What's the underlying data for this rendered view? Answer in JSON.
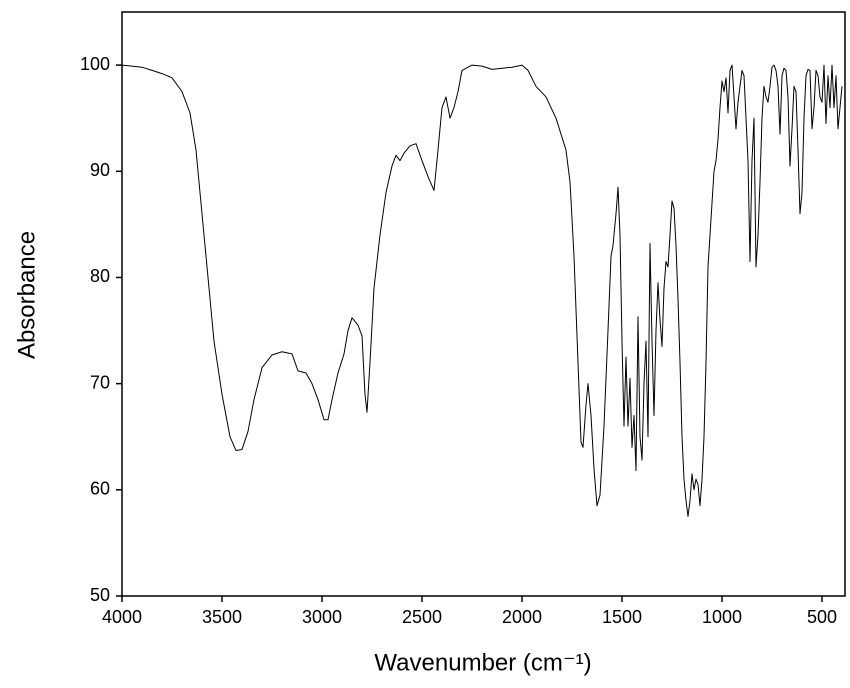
{
  "chart_data": {
    "type": "line",
    "xlabel": "Wavenumber (cm⁻¹)",
    "ylabel": "Absorbance",
    "xlim": [
      4000,
      385
    ],
    "ylim": [
      50,
      105
    ],
    "xticks": [
      4000,
      3500,
      3000,
      2500,
      2000,
      1500,
      1000,
      500
    ],
    "yticks": [
      50,
      60,
      70,
      80,
      90,
      100
    ],
    "color": "#000000",
    "x": [
      4000,
      3950,
      3900,
      3850,
      3800,
      3750,
      3700,
      3660,
      3630,
      3600,
      3570,
      3540,
      3500,
      3460,
      3430,
      3400,
      3370,
      3340,
      3300,
      3250,
      3200,
      3150,
      3120,
      3080,
      3050,
      3020,
      2990,
      2970,
      2950,
      2920,
      2890,
      2870,
      2850,
      2820,
      2800,
      2785,
      2775,
      2760,
      2740,
      2710,
      2680,
      2650,
      2630,
      2610,
      2590,
      2560,
      2530,
      2500,
      2470,
      2440,
      2420,
      2400,
      2380,
      2360,
      2340,
      2320,
      2300,
      2250,
      2200,
      2150,
      2100,
      2050,
      2000,
      1970,
      1930,
      1880,
      1830,
      1780,
      1760,
      1740,
      1720,
      1705,
      1695,
      1680,
      1670,
      1655,
      1640,
      1625,
      1610,
      1590,
      1570,
      1555,
      1545,
      1530,
      1520,
      1510,
      1500,
      1490,
      1480,
      1470,
      1460,
      1450,
      1440,
      1430,
      1420,
      1410,
      1400,
      1390,
      1380,
      1370,
      1360,
      1350,
      1340,
      1330,
      1320,
      1310,
      1300,
      1290,
      1280,
      1270,
      1260,
      1250,
      1240,
      1230,
      1220,
      1210,
      1200,
      1190,
      1180,
      1170,
      1160,
      1150,
      1140,
      1130,
      1120,
      1110,
      1100,
      1090,
      1080,
      1070,
      1060,
      1050,
      1040,
      1030,
      1020,
      1010,
      1000,
      990,
      980,
      970,
      960,
      950,
      940,
      930,
      920,
      910,
      900,
      890,
      880,
      870,
      860,
      850,
      840,
      830,
      820,
      810,
      800,
      790,
      780,
      770,
      760,
      750,
      740,
      730,
      720,
      710,
      700,
      690,
      680,
      670,
      660,
      650,
      640,
      630,
      620,
      610,
      600,
      590,
      580,
      570,
      560,
      550,
      540,
      530,
      520,
      510,
      500,
      490,
      480,
      470,
      460,
      450,
      440,
      430,
      420,
      400
    ],
    "values": [
      100,
      99.9,
      99.8,
      99.5,
      99.2,
      98.8,
      97.5,
      95.5,
      92,
      86,
      80,
      74,
      69,
      65,
      63.7,
      63.8,
      65.5,
      68.5,
      71.5,
      72.7,
      73,
      72.8,
      71.2,
      71,
      70,
      68.5,
      66.6,
      66.6,
      68.5,
      71,
      72.8,
      75,
      76.2,
      75.5,
      74.5,
      69,
      67.3,
      72,
      79,
      84,
      88,
      90.5,
      91.5,
      91,
      91.7,
      92.4,
      92.6,
      91,
      89.5,
      88.2,
      92,
      96,
      97,
      95,
      96,
      97.5,
      99.5,
      100,
      99.9,
      99.6,
      99.7,
      99.8,
      100,
      99.5,
      98,
      97,
      95,
      92,
      89,
      82,
      72,
      64.5,
      64,
      68,
      70,
      67,
      62,
      58.5,
      59.5,
      66,
      75,
      82,
      83,
      86,
      88.5,
      84,
      74,
      66,
      72.5,
      66,
      70.5,
      64,
      67,
      61.8,
      76.3,
      65,
      62.8,
      70,
      74,
      65,
      83.2,
      74,
      67,
      75,
      79.5,
      76,
      73.5,
      79,
      81.5,
      81,
      84,
      87.2,
      86.5,
      83,
      78,
      72,
      65,
      61,
      59,
      57.5,
      59,
      61.5,
      60,
      61,
      60.5,
      58.5,
      61,
      65,
      72,
      81,
      84,
      87,
      90,
      91,
      93,
      96,
      98.5,
      97.5,
      98.8,
      95.5,
      99.5,
      100,
      97,
      94,
      96.5,
      98,
      99.5,
      99,
      95,
      91,
      81.5,
      91,
      95,
      81,
      84,
      89,
      95,
      98,
      97,
      96.5,
      98,
      99.8,
      100,
      99.5,
      98,
      93.5,
      99,
      99.7,
      99.5,
      97,
      90.5,
      94,
      98,
      97.5,
      92,
      86,
      88,
      95,
      99,
      99.6,
      99.5,
      94,
      96,
      99.5,
      99,
      97,
      96.5,
      100,
      94.5,
      99,
      96,
      100,
      96,
      99,
      94,
      98
    ]
  }
}
